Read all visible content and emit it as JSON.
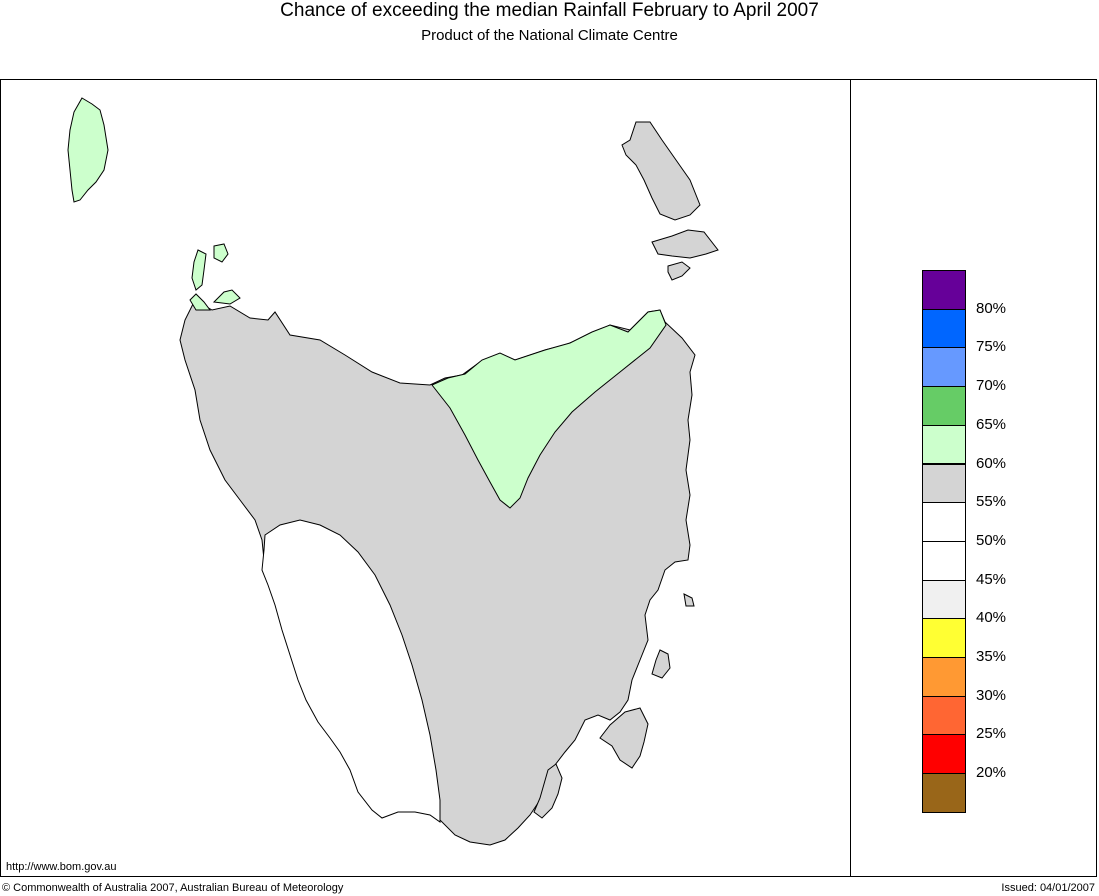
{
  "header": {
    "title": "Chance of exceeding the median Rainfall February to April 2007",
    "subtitle": "Product of the National Climate Centre"
  },
  "colors": {
    "grey_region": "#d4d4d4",
    "green_region": "#ccffcc",
    "white_region": "#ffffff",
    "outline": "#000000"
  },
  "legend": {
    "labels": [
      "80%",
      "75%",
      "70%",
      "65%",
      "60%",
      "55%",
      "50%",
      "45%",
      "40%",
      "35%",
      "30%",
      "25%",
      "20%"
    ],
    "colors": [
      "#660099",
      "#0066ff",
      "#6699ff",
      "#66cc66",
      "#ccffcc",
      "#d4d4d4",
      "#ffffff",
      "#ffffff",
      "#f0f0f0",
      "#ffff33",
      "#ff9933",
      "#ff6633",
      "#ff0000",
      "#996619"
    ]
  },
  "footer": {
    "url": "http://www.bom.gov.au",
    "copyright": "© Commonwealth of Australia 2007, Australian Bureau of Meteorology",
    "issued": "Issued: 04/01/2007"
  }
}
